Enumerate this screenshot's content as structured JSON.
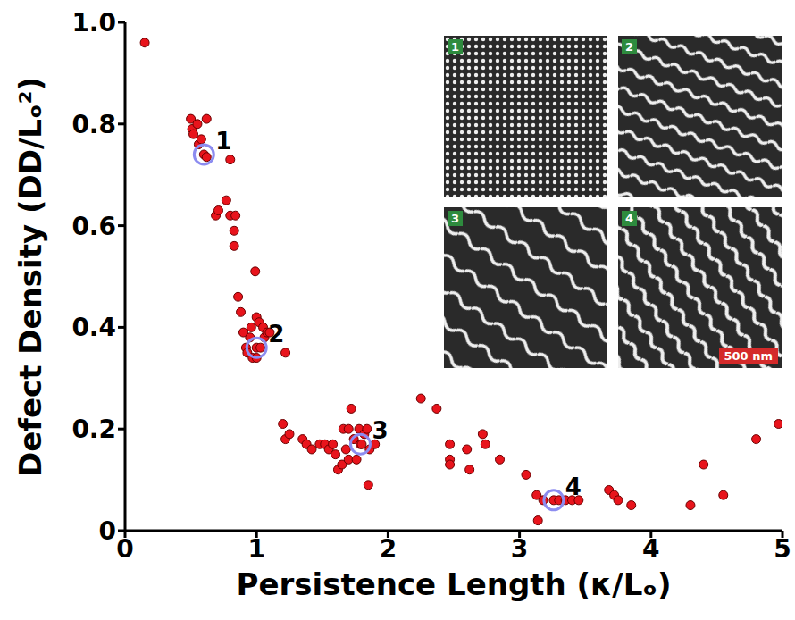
{
  "chart_data": {
    "type": "scatter",
    "x_label": "Persistence Length (κ/Lₒ)",
    "y_label": "Defect Density (DD/Lₒ²)",
    "color": "#e8141c",
    "marker": "circle",
    "grid": false,
    "xlim": [
      0,
      5
    ],
    "ylim": [
      0,
      1
    ],
    "xticks": [
      0,
      1,
      2,
      3,
      4,
      5
    ],
    "yticks": [
      0,
      {
        "value": 0.2,
        "label": "0.2"
      },
      {
        "value": 0.4,
        "label": "0.4"
      },
      {
        "value": 0.6,
        "label": "0.6"
      },
      {
        "value": 0.8,
        "label": "0.8"
      },
      {
        "value": 1,
        "label": "1.0"
      }
    ],
    "x": [
      0.15,
      0.5,
      0.51,
      0.52,
      0.55,
      0.56,
      0.58,
      0.6,
      0.62,
      0.62,
      0.8,
      0.69,
      0.71,
      0.77,
      0.8,
      0.84,
      0.83,
      0.83,
      0.99,
      0.86,
      0.88,
      0.9,
      0.92,
      0.93,
      0.95,
      0.96,
      0.97,
      1.0,
      1.0,
      1.0,
      1.02,
      1.03,
      1.05,
      1.06,
      1.08,
      1.1,
      1.22,
      1.2,
      1.22,
      1.25,
      1.35,
      1.38,
      1.42,
      1.48,
      1.52,
      1.55,
      1.58,
      1.6,
      1.62,
      1.65,
      1.66,
      1.68,
      1.7,
      1.7,
      1.72,
      1.74,
      1.76,
      1.78,
      1.79,
      1.8,
      1.82,
      1.84,
      1.85,
      1.86,
      1.9,
      2.25,
      2.37,
      2.47,
      2.47,
      2.47,
      2.6,
      2.62,
      2.72,
      2.74,
      2.85,
      3.05,
      3.13,
      3.14,
      3.18,
      3.26,
      3.3,
      3.35,
      3.4,
      3.45,
      3.68,
      3.72,
      3.75,
      3.85,
      4.3,
      4.4,
      4.55,
      4.8,
      4.97
    ],
    "values": [
      0.96,
      0.81,
      0.79,
      0.78,
      0.8,
      0.76,
      0.77,
      0.74,
      0.81,
      0.735,
      0.73,
      0.62,
      0.63,
      0.65,
      0.62,
      0.62,
      0.59,
      0.56,
      0.51,
      0.46,
      0.43,
      0.39,
      0.36,
      0.35,
      0.38,
      0.4,
      0.34,
      0.42,
      0.34,
      0.36,
      0.41,
      0.36,
      0.4,
      0.38,
      0.39,
      0.39,
      0.35,
      0.21,
      0.18,
      0.19,
      0.18,
      0.17,
      0.16,
      0.17,
      0.17,
      0.16,
      0.17,
      0.15,
      0.12,
      0.13,
      0.2,
      0.16,
      0.2,
      0.14,
      0.24,
      0.18,
      0.14,
      0.2,
      0.17,
      0.17,
      0.19,
      0.2,
      0.09,
      0.16,
      0.17,
      0.26,
      0.24,
      0.17,
      0.14,
      0.13,
      0.16,
      0.12,
      0.19,
      0.17,
      0.14,
      0.11,
      0.07,
      0.02,
      0.06,
      0.06,
      0.06,
      0.06,
      0.06,
      0.06,
      0.08,
      0.07,
      0.06,
      0.05,
      0.05,
      0.13,
      0.07,
      0.18,
      0.21
    ],
    "annotations": [
      {
        "text": "1",
        "x": 0.6,
        "y": 0.74
      },
      {
        "text": "2",
        "x": 1.0,
        "y": 0.36
      },
      {
        "text": "3",
        "x": 1.79,
        "y": 0.17
      },
      {
        "text": "4",
        "x": 3.26,
        "y": 0.06
      }
    ],
    "insets": {
      "labels": [
        "1",
        "2",
        "3",
        "4"
      ],
      "scale_bar": "500 nm"
    }
  }
}
